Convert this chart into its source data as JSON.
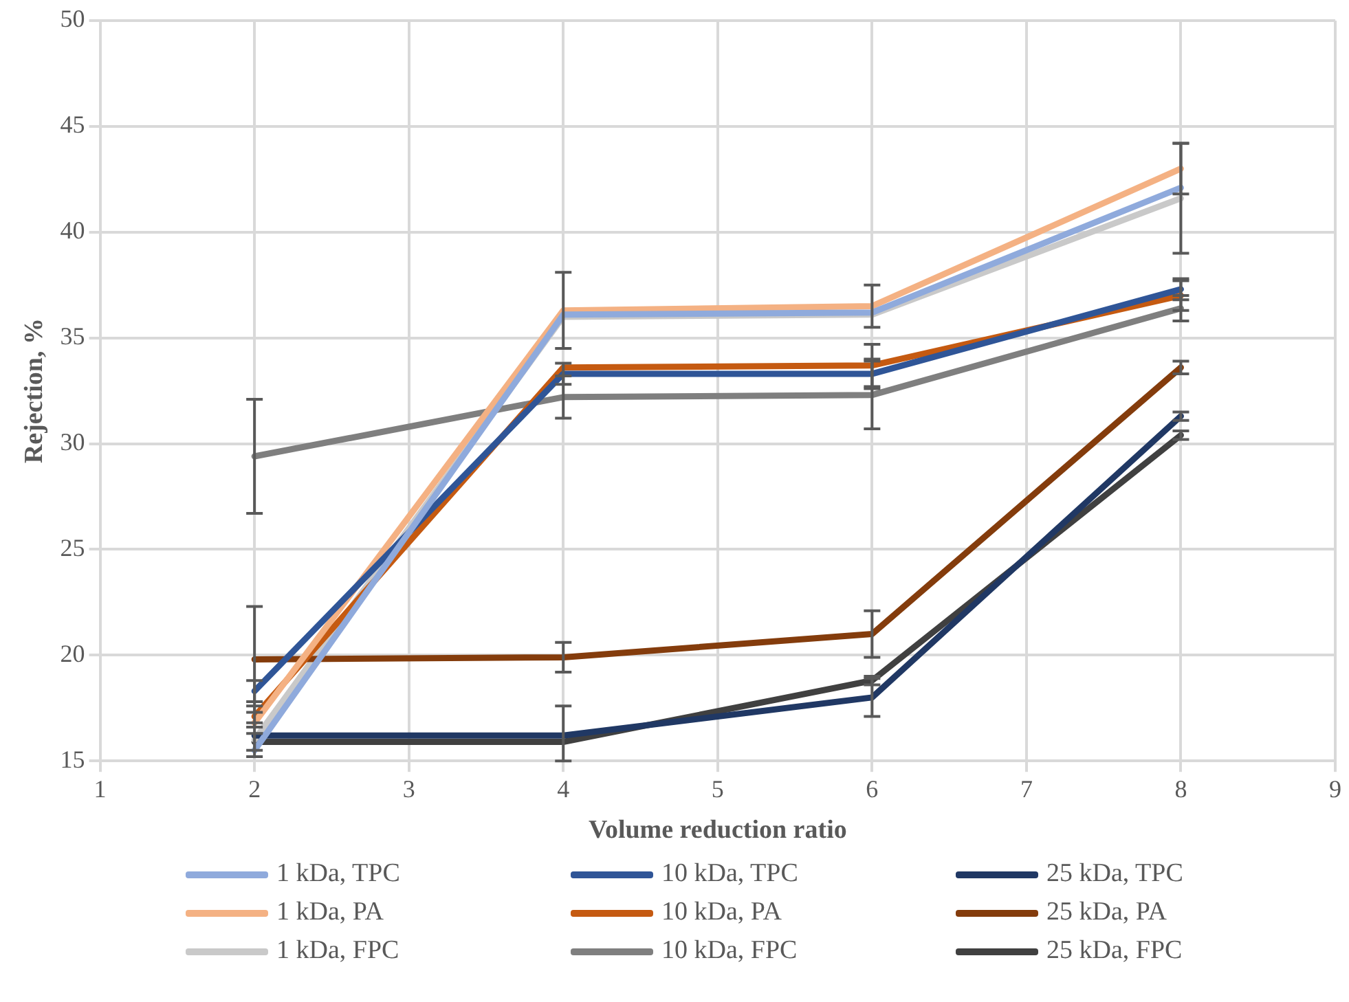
{
  "chart_data": {
    "type": "line",
    "xlabel": "Volume reduction ratio",
    "ylabel": "Rejection, %",
    "x": [
      2,
      4,
      6,
      8
    ],
    "xlim": [
      1,
      9
    ],
    "xticks": [
      1,
      2,
      3,
      4,
      5,
      6,
      7,
      8,
      9
    ],
    "ylim": [
      15,
      50
    ],
    "yticks": [
      15,
      20,
      25,
      30,
      35,
      40,
      45,
      50
    ],
    "grid": true,
    "legend": "bottom",
    "line_style": "solid",
    "series": [
      {
        "name": "1 kDa, TPC",
        "color": "#8faadc",
        "values": [
          15.5,
          36.1,
          36.2,
          42.1
        ]
      },
      {
        "name": "10 kDa, TPC",
        "color": "#2f5597",
        "values": [
          18.3,
          33.3,
          33.3,
          37.3
        ],
        "errors": [
          0.5,
          0.5,
          0.7,
          0.5
        ]
      },
      {
        "name": "25 kDa, TPC",
        "color": "#203864",
        "values": [
          16.2,
          16.2,
          18.0,
          31.3
        ],
        "errors": [
          null,
          null,
          0.9,
          0.2
        ]
      },
      {
        "name": "1 kDa, PA",
        "color": "#f4b183",
        "values": [
          16.8,
          36.3,
          36.5,
          43.0
        ],
        "errors": [
          null,
          1.8,
          1.0,
          1.2
        ]
      },
      {
        "name": "10 kDa, PA",
        "color": "#c55a11",
        "values": [
          17.1,
          33.6,
          33.7,
          37.0
        ],
        "errors": [
          0.5,
          null,
          1.0,
          0.7
        ]
      },
      {
        "name": "25 kDa, PA",
        "color": "#843c0c",
        "values": [
          19.8,
          19.9,
          21.0,
          33.6
        ],
        "errors": [
          2.5,
          0.7,
          1.1,
          0.3
        ]
      },
      {
        "name": "1 kDa, FPC",
        "color": "#c9c9c9",
        "values": [
          16.0,
          36.0,
          36.1,
          41.6
        ],
        "errors": [
          0.8,
          null,
          null,
          2.6
        ]
      },
      {
        "name": "10 kDa, FPC",
        "color": "#7f7f7f",
        "values": [
          29.4,
          32.2,
          32.3,
          36.4
        ],
        "errors": [
          2.7,
          1.0,
          1.6,
          0.6
        ]
      },
      {
        "name": "25 kDa, FPC",
        "color": "#404040",
        "values": [
          15.9,
          15.9,
          18.8,
          30.4
        ],
        "errors": [
          0.4,
          [
            15,
            17.6
          ],
          0.2,
          0.2
        ]
      }
    ]
  }
}
